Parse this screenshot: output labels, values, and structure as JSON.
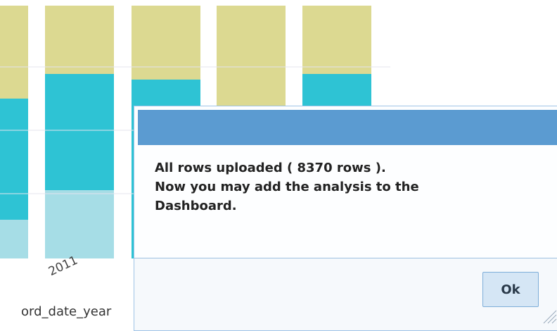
{
  "background_chart": {
    "x_tick_label": "2011",
    "x_axis_label": "ord_date_year"
  },
  "dialog": {
    "message": [
      "All rows uploaded ( 8370 rows ).",
      "Now you may add the analysis to the Dashboard."
    ],
    "button": "Ok"
  }
}
